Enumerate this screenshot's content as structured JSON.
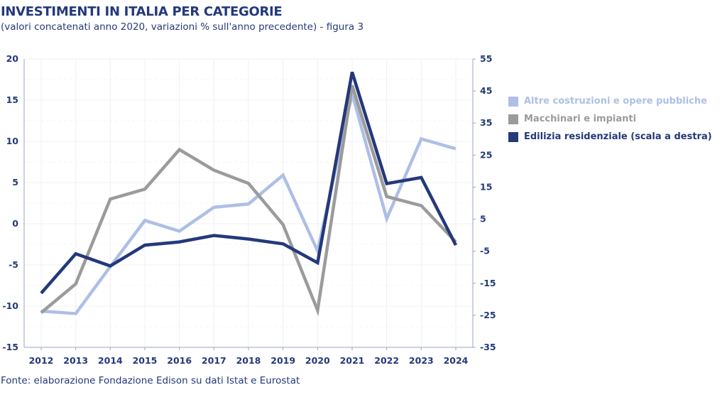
{
  "header": {
    "title": "INVESTIMENTI IN ITALIA PER CATEGORIE",
    "subtitle": "(valori concatenati anno 2020, variazioni % sull'anno precedente)  - figura 3"
  },
  "footer": {
    "source": "Fonte: elaborazione Fondazione Edison su dati Istat e Eurostat"
  },
  "chart_data": {
    "type": "line",
    "title": "INVESTIMENTI IN ITALIA PER CATEGORIE",
    "subtitle": "(valori concatenati anno 2020, variazioni % sull'anno precedente)  - figura 3",
    "x": [
      "2012",
      "2013",
      "2014",
      "2015",
      "2016",
      "2017",
      "2018",
      "2019",
      "2020",
      "2021",
      "2022",
      "2023",
      "2024"
    ],
    "y_left": {
      "range": [
        -15,
        20
      ],
      "ticks": [
        "20",
        "15",
        "10",
        "5",
        "0",
        "-5",
        "-10",
        "-15"
      ]
    },
    "y_right": {
      "range": [
        -35,
        55
      ],
      "ticks": [
        "55",
        "45",
        "35",
        "25",
        "15",
        "5",
        "-5",
        "-15",
        "-25",
        "-35"
      ]
    },
    "grid": true,
    "legend_position": "right",
    "series": [
      {
        "name": "Altre costruzioni e opere pubbliche",
        "axis": "left",
        "color": "#aebfe6",
        "values": [
          -10.6,
          -10.9,
          -5.2,
          0.4,
          -0.9,
          2.0,
          2.4,
          5.9,
          -3.3,
          15.8,
          0.6,
          10.3,
          9.1
        ]
      },
      {
        "name": "Macchinari e impianti",
        "axis": "left",
        "color": "#9b9b9b",
        "values": [
          -10.8,
          -7.3,
          3.0,
          4.2,
          9.0,
          6.5,
          4.9,
          -0.1,
          -10.5,
          16.8,
          3.3,
          2.2,
          -2.2
        ]
      },
      {
        "name": "Edilizia residenziale (scala a destra)",
        "axis": "right",
        "color": "#24397a",
        "values": [
          -18.1,
          -5.8,
          -9.6,
          -3.1,
          -2.1,
          -0.1,
          -1.2,
          -2.7,
          -8.6,
          50.9,
          16.1,
          18.0,
          -3.1
        ]
      }
    ]
  }
}
